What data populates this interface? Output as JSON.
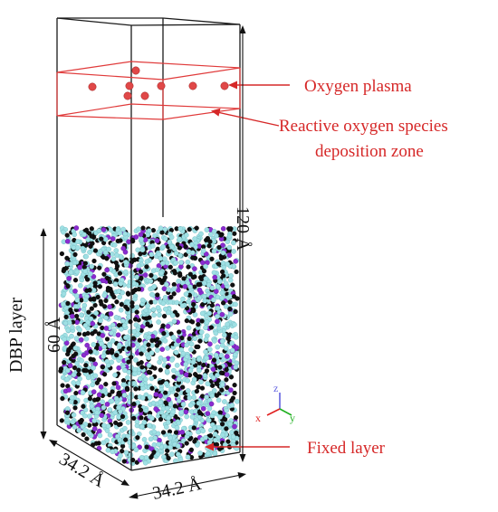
{
  "labels": {
    "oxygen_plasma": "Oxygen plasma",
    "ros_line1": "Reactive oxygen species",
    "ros_line2": "deposition zone",
    "fixed_layer": "Fixed layer",
    "dbp_layer": "DBP layer",
    "height_total": "120 Å",
    "height_dbp": "60 Å",
    "width_front": "34.2 Å",
    "width_side": "34.2 Å"
  },
  "axes_triad": {
    "x": "x",
    "y": "y",
    "z": "z"
  },
  "colors": {
    "box_edges": "#1a1a1a",
    "zone_edges": "#e03a3a",
    "plasma_atom": "#e04848",
    "annotation": "#d62828",
    "atom_cyan": "#9fe0e4",
    "atom_black": "#111111",
    "atom_purple": "#8a2bd0",
    "axis_x": "#e02020",
    "axis_y": "#20b020",
    "axis_z": "#6060e0"
  }
}
